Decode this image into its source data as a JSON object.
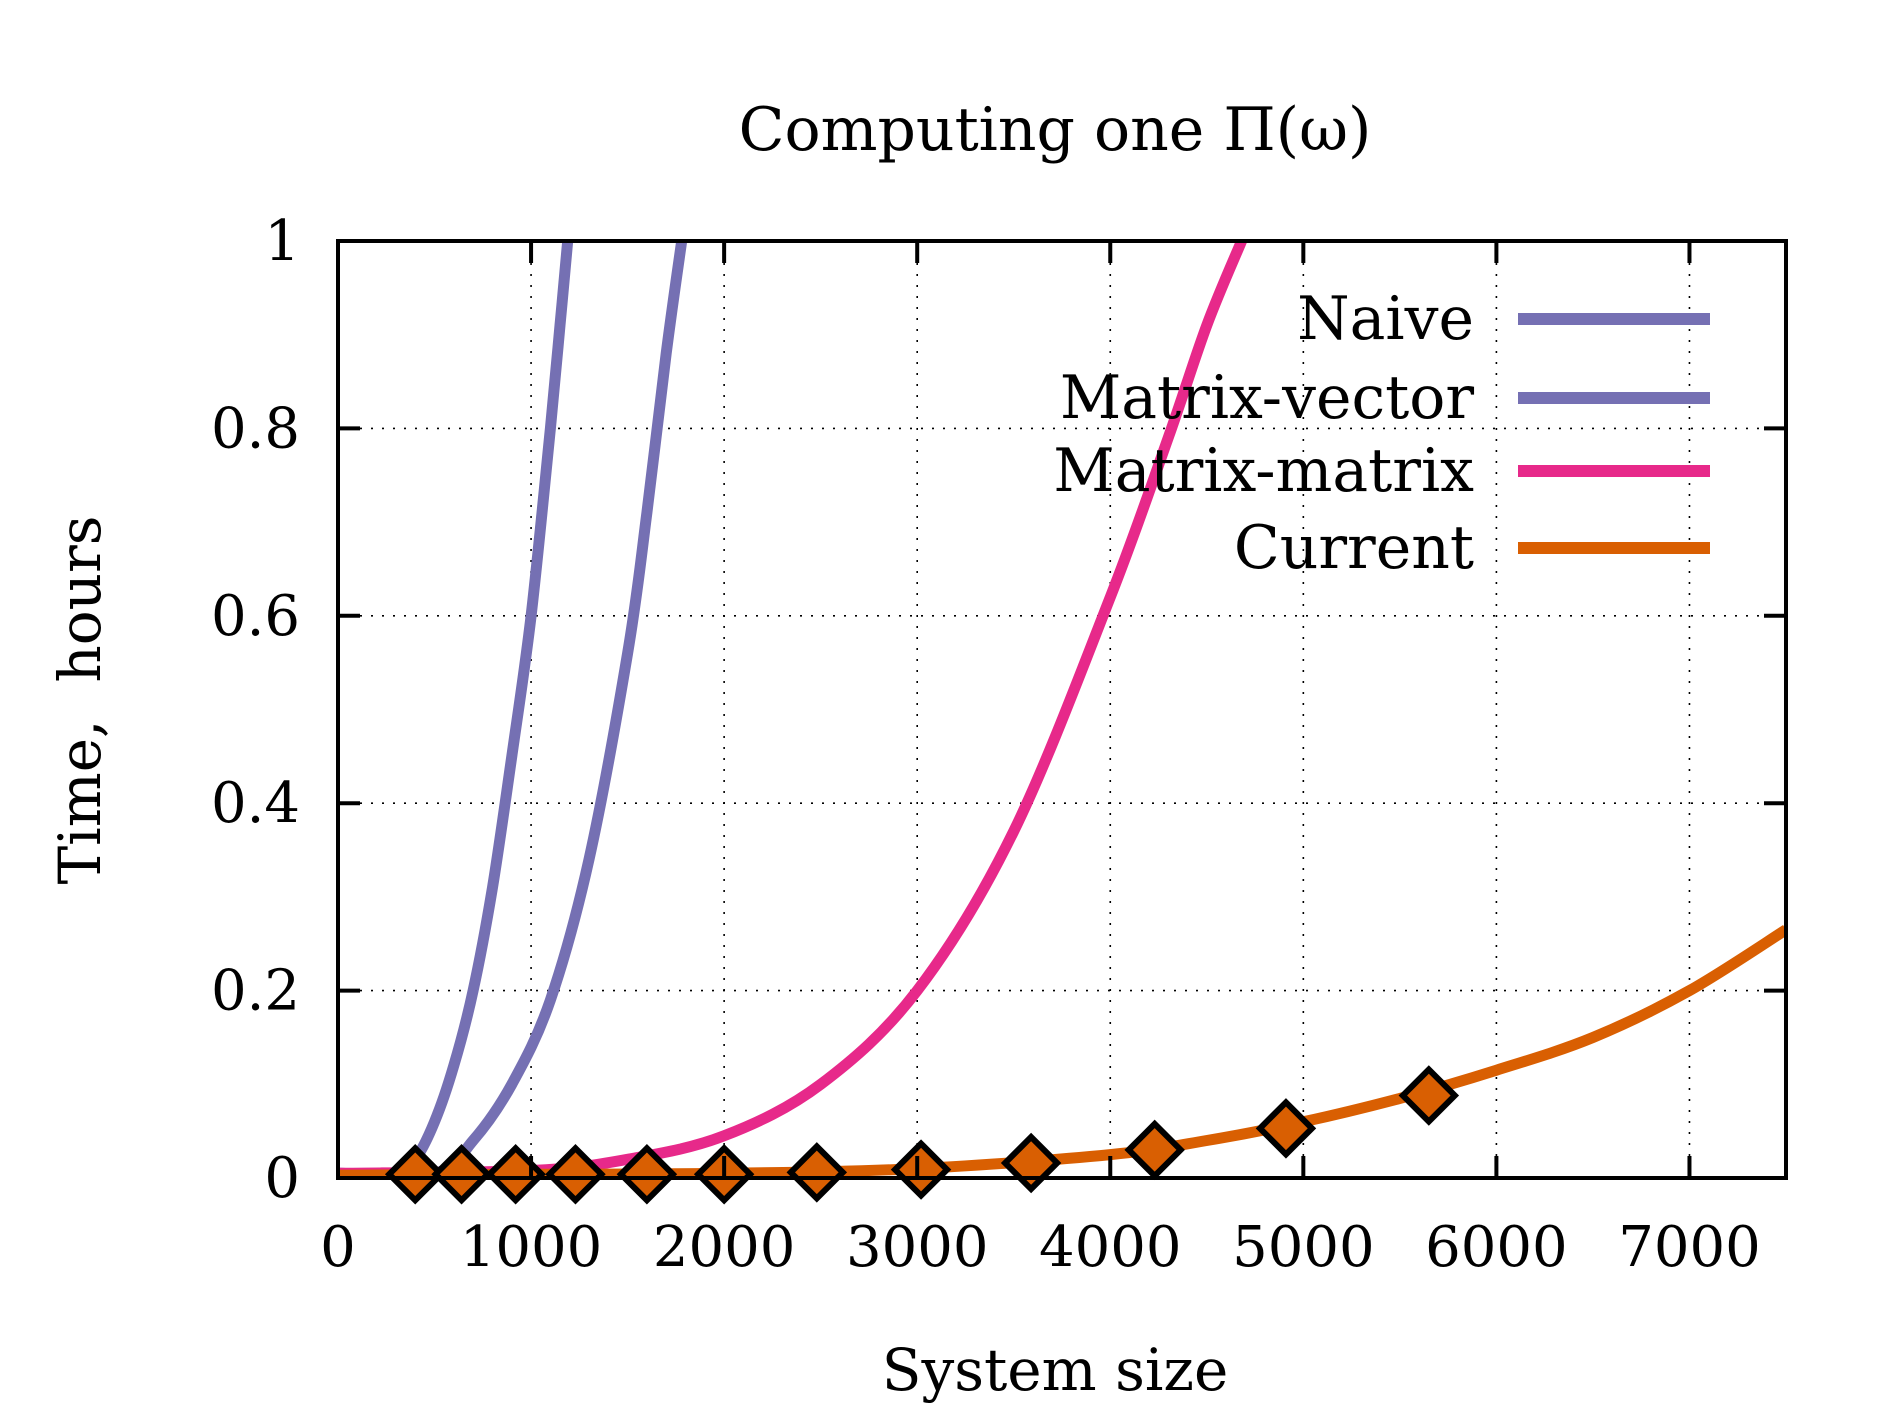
{
  "chart_data": {
    "type": "line",
    "title": "Computing one Π(ω)",
    "xlabel": "System size",
    "ylabel": "Time,  hours",
    "xlim": [
      0,
      7500
    ],
    "ylim": [
      0,
      1
    ],
    "x_ticks": [
      "0",
      "1000",
      "2000",
      "3000",
      "4000",
      "5000",
      "6000",
      "7000"
    ],
    "y_ticks": [
      "0",
      "0.2",
      "0.4",
      "0.6",
      "0.8",
      "1"
    ],
    "grid": true,
    "grid_style": "dotted",
    "legend_position": "top-right",
    "series": [
      {
        "name": "Naive",
        "color": "#7570b3",
        "x": [
          0,
          300,
          400,
          500,
          600,
          700,
          800,
          900,
          1000,
          1100,
          1150,
          1190
        ],
        "y": [
          0.005,
          0.005,
          0.02,
          0.06,
          0.12,
          0.2,
          0.31,
          0.45,
          0.6,
          0.8,
          0.91,
          1.0
        ]
      },
      {
        "name": "Matrix-vector",
        "color": "#7570b3",
        "x": [
          0,
          500,
          700,
          900,
          1100,
          1300,
          1500,
          1600,
          1700,
          1780
        ],
        "y": [
          0.005,
          0.005,
          0.04,
          0.1,
          0.19,
          0.34,
          0.56,
          0.71,
          0.88,
          1.0
        ]
      },
      {
        "name": "Matrix-matrix",
        "color": "#e7298a",
        "x": [
          0,
          1000,
          1500,
          2000,
          2500,
          3000,
          3500,
          4000,
          4300,
          4500,
          4680
        ],
        "y": [
          0.005,
          0.008,
          0.02,
          0.045,
          0.1,
          0.2,
          0.37,
          0.62,
          0.79,
          0.91,
          1.0
        ]
      },
      {
        "name": "Current",
        "color": "#d95f02",
        "x": [
          0,
          1000,
          2000,
          3000,
          4000,
          4500,
          5000,
          5500,
          6000,
          6500,
          7000,
          7500
        ],
        "y": [
          0.003,
          0.004,
          0.005,
          0.01,
          0.025,
          0.04,
          0.06,
          0.085,
          0.115,
          0.15,
          0.2,
          0.265
        ]
      }
    ],
    "markers": {
      "series": "Current",
      "shape": "diamond",
      "fill": "#d95f02",
      "stroke": "#000000",
      "x": [
        400,
        640,
        920,
        1230,
        1600,
        2000,
        2480,
        3020,
        3590,
        4230,
        4910,
        5650
      ],
      "y": [
        0.004,
        0.004,
        0.004,
        0.004,
        0.004,
        0.004,
        0.006,
        0.009,
        0.016,
        0.03,
        0.053,
        0.088
      ]
    }
  }
}
